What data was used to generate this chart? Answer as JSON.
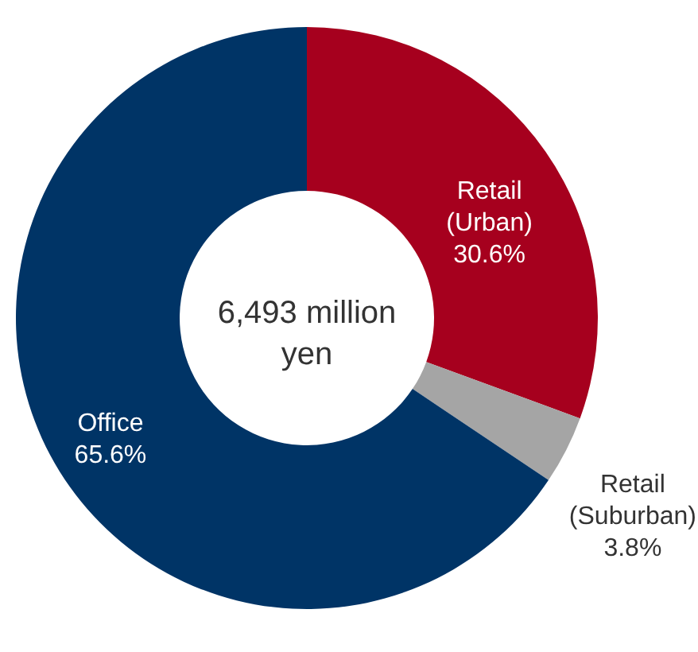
{
  "chart_data": {
    "type": "donut",
    "categories": [
      "Retail (Urban)",
      "Retail (Suburban)",
      "Office"
    ],
    "values": [
      30.6,
      3.8,
      65.6
    ],
    "colors": [
      "#a6001e",
      "#a5a5a5",
      "#003466"
    ],
    "value_labels": [
      "30.6%",
      "3.8%",
      "65.6%"
    ],
    "annotations": [
      "6,493 million yen"
    ]
  }
}
